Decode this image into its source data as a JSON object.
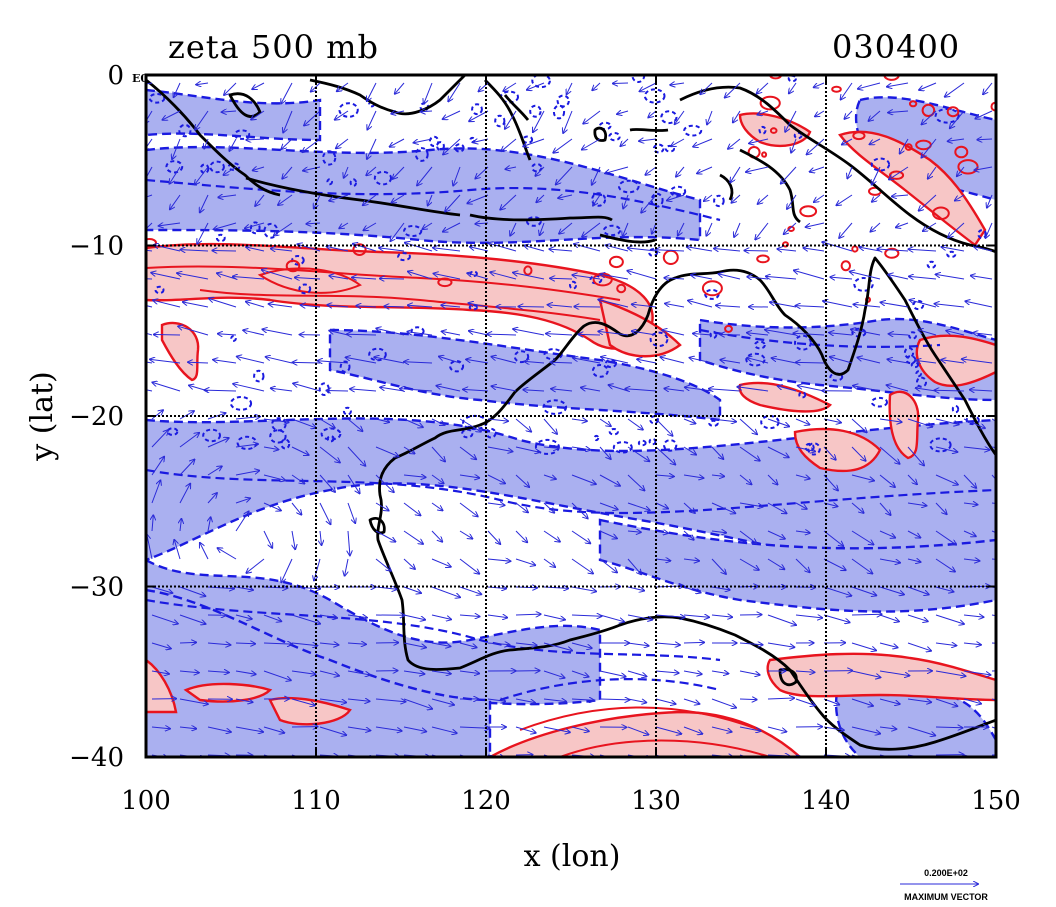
{
  "title": "zeta 500 mb",
  "timestamp": "030400",
  "corner_label": "E0",
  "colors": {
    "positive_fill": "#f7c6c6",
    "positive_line": "#e8141e",
    "negative_fill": "#aab0f0",
    "negative_line": "#1a1ae0",
    "vector": "#2a2ad8",
    "coast": "#000000"
  },
  "chart_data": {
    "type": "contour-vector-map",
    "xlabel": "x (lon)",
    "ylabel": "y (lat)",
    "xlim": [
      100,
      150
    ],
    "ylim": [
      -40,
      0
    ],
    "x_ticks": [
      {
        "v": 100,
        "label": "100"
      },
      {
        "v": 110,
        "label": "110"
      },
      {
        "v": 120,
        "label": "120"
      },
      {
        "v": 130,
        "label": "130"
      },
      {
        "v": 140,
        "label": "140"
      },
      {
        "v": 150,
        "label": "150"
      }
    ],
    "y_ticks": [
      {
        "v": 0,
        "label": "0"
      },
      {
        "v": -10,
        "label": "−10"
      },
      {
        "v": -20,
        "label": "−20"
      },
      {
        "v": -30,
        "label": "−30"
      },
      {
        "v": -40,
        "label": "−40"
      }
    ],
    "grid": true,
    "vector_legend": {
      "value": "0.200E+02",
      "label": "MAXIMUM VECTOR"
    }
  }
}
